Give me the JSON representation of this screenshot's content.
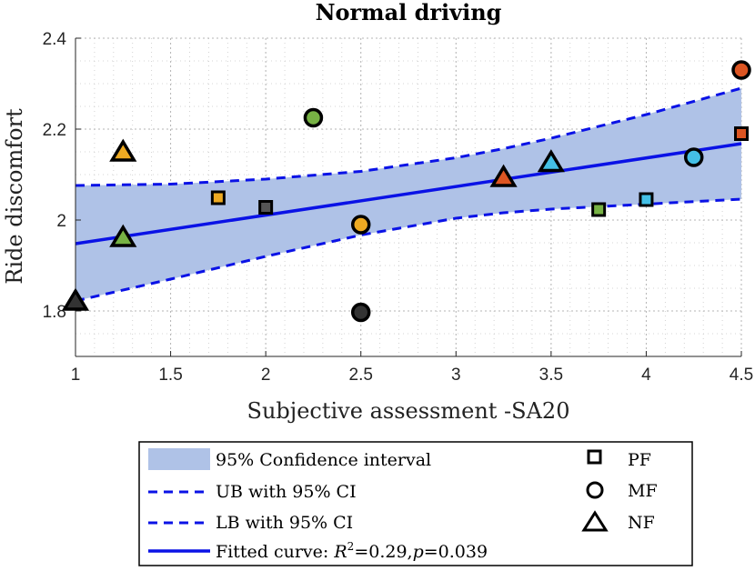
{
  "chart_data": {
    "type": "scatter",
    "title": "Normal driving",
    "xlabel": "Subjective assessment -SA20",
    "ylabel": "Ride discomfort",
    "xlim": [
      1,
      4.5
    ],
    "ylim": [
      1.7,
      2.4
    ],
    "xticks": [
      1,
      1.5,
      2,
      2.5,
      3,
      3.5,
      4,
      4.5
    ],
    "xtick_labels": [
      "1",
      "1.5",
      "2",
      "2.5",
      "3",
      "3.5",
      "4",
      "4.5"
    ],
    "yticks": [
      1.8,
      2,
      2.2,
      2.4
    ],
    "ytick_labels": [
      "1.8",
      "2",
      "2.2",
      "2.4"
    ],
    "grid": true,
    "fit": {
      "x": [
        1,
        4.5
      ],
      "y": [
        1.948,
        2.168
      ]
    },
    "ci_upper": {
      "x": [
        1,
        1.5,
        2,
        2.5,
        3,
        3.25,
        3.5,
        4,
        4.5
      ],
      "y": [
        2.076,
        2.079,
        2.09,
        2.107,
        2.137,
        2.157,
        2.18,
        2.232,
        2.29
      ]
    },
    "ci_lower": {
      "x": [
        1,
        1.5,
        2,
        2.5,
        3,
        3.25,
        3.5,
        4,
        4.5
      ],
      "y": [
        1.822,
        1.87,
        1.92,
        1.967,
        2.004,
        2.016,
        2.024,
        2.035,
        2.046
      ]
    },
    "points": [
      {
        "x": 1.0,
        "y": 1.82,
        "marker": "triangle",
        "color": "#333333"
      },
      {
        "x": 1.25,
        "y": 2.148,
        "marker": "triangle",
        "color": "#eeaa22"
      },
      {
        "x": 1.25,
        "y": 1.96,
        "marker": "triangle",
        "color": "#77b244"
      },
      {
        "x": 1.75,
        "y": 2.049,
        "marker": "square",
        "color": "#eeaa22"
      },
      {
        "x": 2.0,
        "y": 2.028,
        "marker": "square",
        "color": "#555555"
      },
      {
        "x": 2.25,
        "y": 2.225,
        "marker": "circle",
        "color": "#77b244"
      },
      {
        "x": 2.5,
        "y": 1.99,
        "marker": "circle",
        "color": "#eeaa22"
      },
      {
        "x": 2.5,
        "y": 1.797,
        "marker": "circle",
        "color": "#333333"
      },
      {
        "x": 3.25,
        "y": 2.092,
        "marker": "triangle",
        "color": "#dd5522"
      },
      {
        "x": 3.5,
        "y": 2.125,
        "marker": "triangle",
        "color": "#44c0e6"
      },
      {
        "x": 3.75,
        "y": 2.023,
        "marker": "square",
        "color": "#77b244"
      },
      {
        "x": 4.0,
        "y": 2.045,
        "marker": "square",
        "color": "#44c0e6"
      },
      {
        "x": 4.25,
        "y": 2.138,
        "marker": "circle",
        "color": "#44c0e6"
      },
      {
        "x": 4.5,
        "y": 2.33,
        "marker": "circle",
        "color": "#dd5522"
      },
      {
        "x": 4.5,
        "y": 2.19,
        "marker": "square",
        "color": "#dd5522"
      }
    ],
    "legend": {
      "placement": "bottom",
      "entries": [
        {
          "label": "95% Confidence interval",
          "kind": "band"
        },
        {
          "label": "UB with 95% CI",
          "kind": "dashed"
        },
        {
          "label": "LB with 95% CI",
          "kind": "dashed"
        },
        {
          "label_prefix": "Fitted curve: ",
          "r2_symbol": "R",
          "r2_sup": "2",
          "r2_text": "=0.29,",
          "p_symbol": "p",
          "p_text": "=0.039",
          "kind": "line"
        }
      ],
      "marker_entries": [
        {
          "label": "PF",
          "marker": "square"
        },
        {
          "label": "MF",
          "marker": "circle"
        },
        {
          "label": "NF",
          "marker": "triangle"
        }
      ]
    },
    "colors": {
      "band": "#afc2e7",
      "line": "#0a12e6",
      "grid": "#c8c8c8"
    }
  }
}
